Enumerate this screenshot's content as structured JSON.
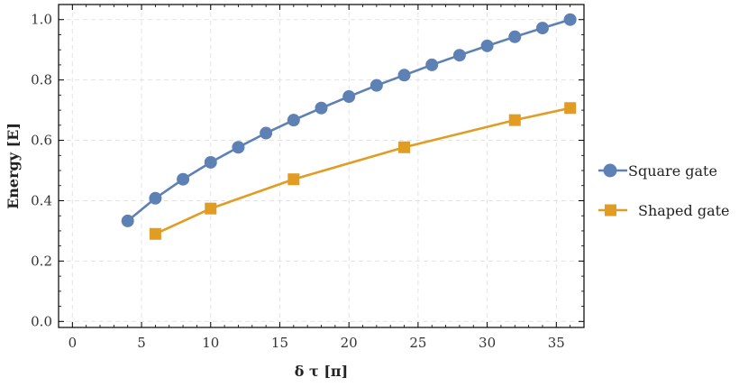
{
  "chart_data": {
    "type": "line",
    "xlabel": "δ τ [π]",
    "ylabel": "Energy [E]",
    "xlim": [
      -1,
      37
    ],
    "ylim": [
      -0.02,
      1.05
    ],
    "xticks": [
      0,
      5,
      10,
      15,
      20,
      25,
      30,
      35
    ],
    "yticks": [
      0.0,
      0.2,
      0.4,
      0.6,
      0.8,
      1.0
    ],
    "xtick_labels": [
      "0",
      "5",
      "10",
      "15",
      "20",
      "25",
      "30",
      "35"
    ],
    "ytick_labels": [
      "0.0",
      "0.2",
      "0.4",
      "0.6",
      "0.8",
      "1.0"
    ],
    "grid": true,
    "legend_position": "right",
    "series": [
      {
        "name": "Square gate",
        "color": "#5E81B5",
        "marker": "circle",
        "x": [
          4,
          6,
          8,
          10,
          12,
          14,
          16,
          18,
          20,
          22,
          24,
          26,
          28,
          30,
          32,
          34,
          36
        ],
        "y": [
          0.333,
          0.408,
          0.471,
          0.527,
          0.577,
          0.624,
          0.667,
          0.707,
          0.745,
          0.782,
          0.816,
          0.85,
          0.882,
          0.913,
          0.943,
          0.972,
          1.0
        ]
      },
      {
        "name": "Shaped gate",
        "color": "#E19C24",
        "marker": "square",
        "x": [
          6,
          10,
          16,
          24,
          32,
          36
        ],
        "y": [
          0.29,
          0.374,
          0.471,
          0.577,
          0.667,
          0.707
        ]
      }
    ]
  }
}
